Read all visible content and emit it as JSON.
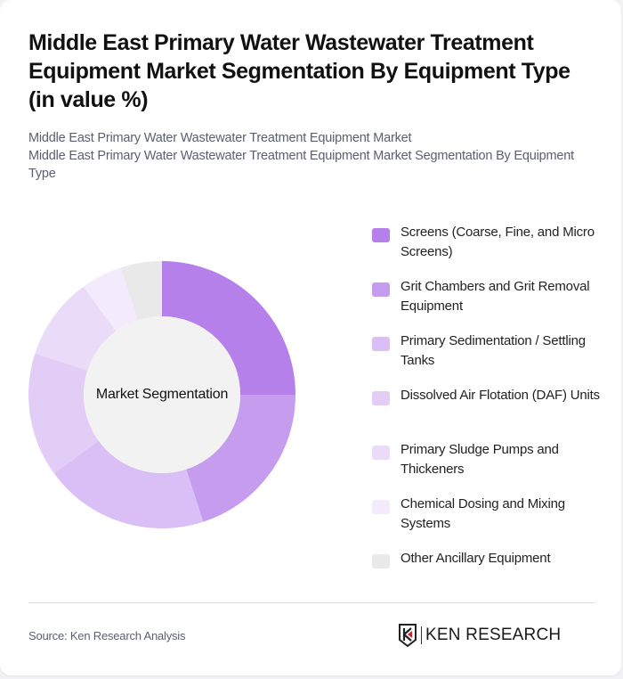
{
  "header": {
    "title": "Middle East Primary Water Wastewater Treatment Equipment Market Segmentation By Equipment Type (in value %)",
    "subtitle_line1": "Middle East Primary Water Wastewater Treatment Equipment Market",
    "subtitle_line2": "Middle East Primary Water Wastewater Treatment Equipment Market Segmentation By Equipment Type"
  },
  "chart": {
    "center_label": "Market Segmentation"
  },
  "legend": [
    {
      "label": "Screens (Coarse, Fine, and Micro Screens)",
      "color": "#b580ea"
    },
    {
      "label": "Grit Chambers and Grit Removal Equipment",
      "color": "#c69cee"
    },
    {
      "label": "Primary Sedimentation / Settling Tanks",
      "color": "#d9bff5"
    },
    {
      "label": "Dissolved Air Flotation (DAF) Units",
      "color": "#e2cdf7"
    },
    {
      "label": "Primary Sludge Pumps and Thickeners",
      "color": "#eadbf9"
    },
    {
      "label": "Chemical Dosing and Mixing Systems",
      "color": "#f3ebfc"
    },
    {
      "label": "Other Ancillary Equipment",
      "color": "#e9e9e9"
    }
  ],
  "footer": {
    "source": "Source: Ken Research Analysis",
    "logo_text": "KEN RESEARCH",
    "logo_icon": "ken-research-shield-icon"
  },
  "chart_data": {
    "type": "pie",
    "subtype": "donut",
    "title": "Middle East Primary Water Wastewater Treatment Equipment Market Segmentation By Equipment Type (in value %)",
    "center_label": "Market Segmentation",
    "categories": [
      "Screens (Coarse, Fine, and Micro Screens)",
      "Grit Chambers and Grit Removal Equipment",
      "Primary Sedimentation / Settling Tanks",
      "Dissolved Air Flotation (DAF) Units",
      "Primary Sludge Pumps and Thickeners",
      "Chemical Dosing and Mixing Systems",
      "Other Ancillary Equipment"
    ],
    "values": [
      25,
      20,
      20,
      15,
      10,
      5,
      5
    ],
    "colors": [
      "#b580ea",
      "#c69cee",
      "#d9bff5",
      "#e2cdf7",
      "#eadbf9",
      "#f3ebfc",
      "#e9e9e9"
    ],
    "unit": "%",
    "legend_position": "right",
    "start_angle": "12 o'clock, clockwise"
  }
}
